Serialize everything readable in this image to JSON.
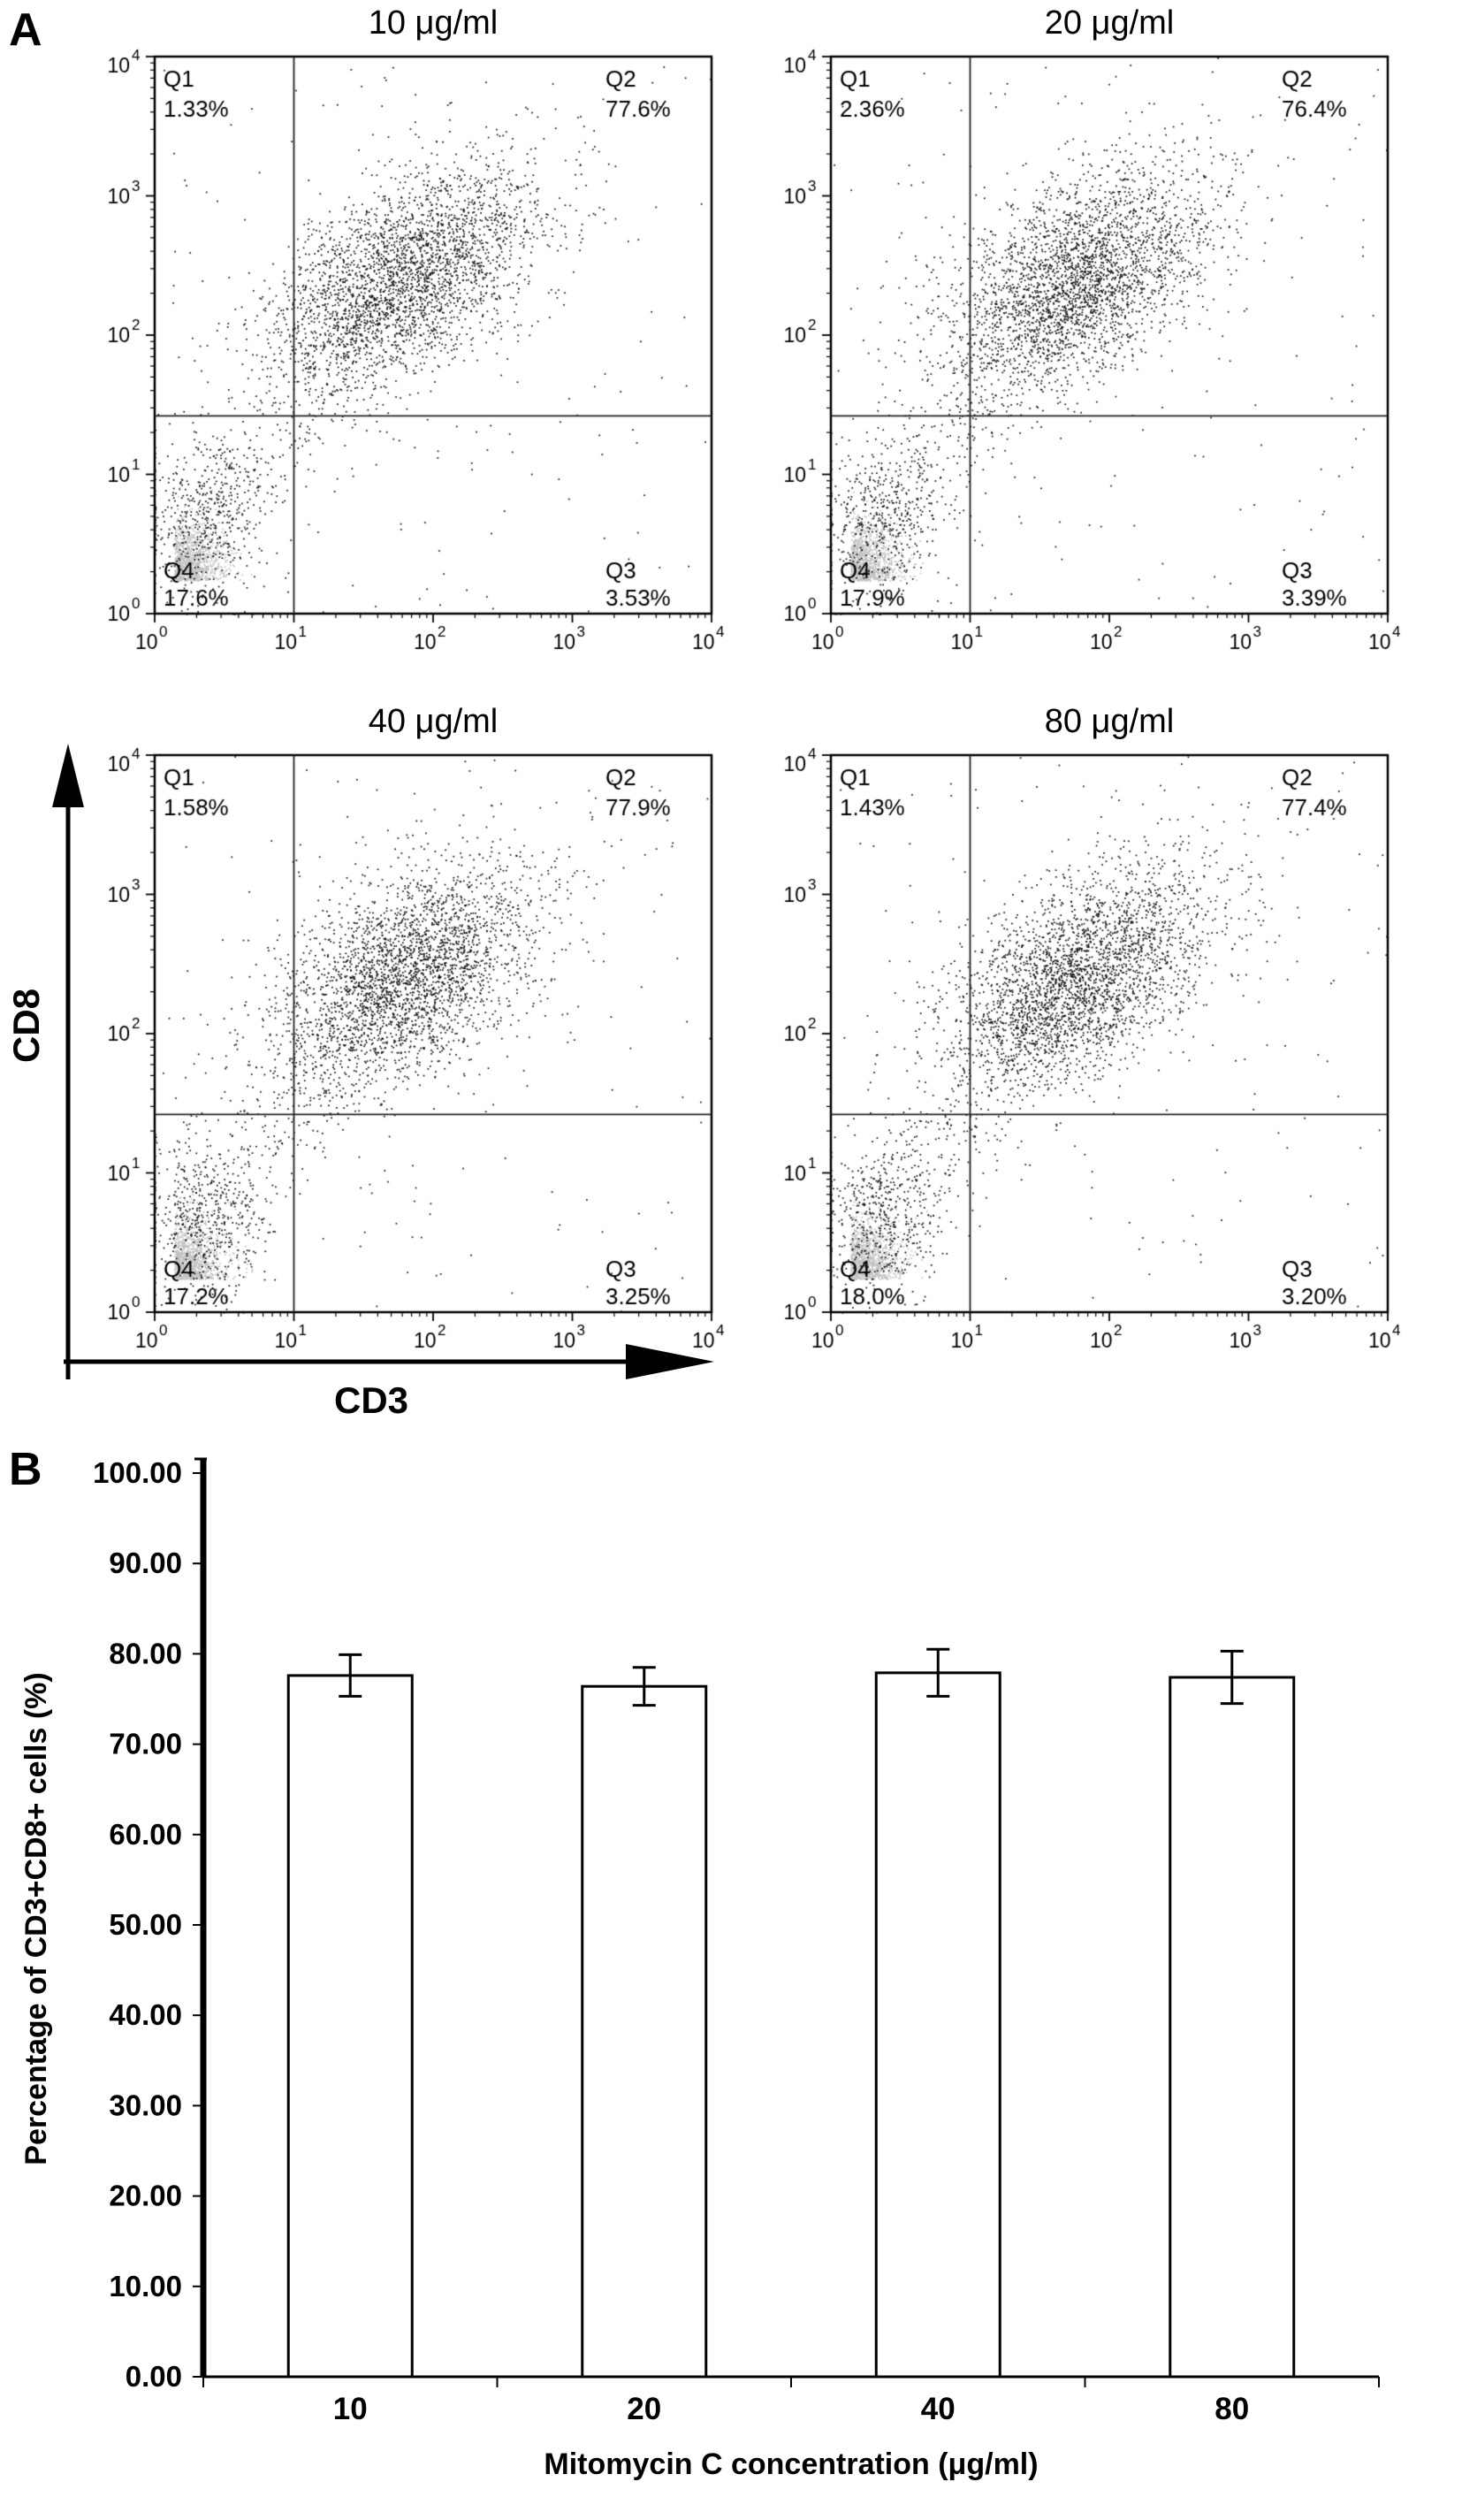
{
  "panel_a": {
    "label": "A",
    "x_axis_label": "CD3",
    "y_axis_label": "CD8"
  },
  "panel_b": {
    "label": "B"
  },
  "chart_data": [
    {
      "type": "scatter",
      "subtype": "flow-cytometry-quadrant-plots",
      "x_label": "CD3",
      "y_label": "CD8",
      "scale": "log10",
      "exponent_range": [
        0,
        4
      ],
      "tick_base": "10",
      "tick_exponents": [
        "0",
        "1",
        "2",
        "3",
        "4"
      ],
      "quadrant_gate_x_exponent": 1.0,
      "quadrant_gate_y_exponent": 1.42,
      "panels": [
        {
          "title": "10 μg/ml",
          "quadrants": [
            {
              "label": "Q1",
              "value": "1.33%"
            },
            {
              "label": "Q2",
              "value": "77.6%"
            },
            {
              "label": "Q3",
              "value": "3.53%"
            },
            {
              "label": "Q4",
              "value": "17.6%"
            }
          ]
        },
        {
          "title": "20 μg/ml",
          "quadrants": [
            {
              "label": "Q1",
              "value": "2.36%"
            },
            {
              "label": "Q2",
              "value": "76.4%"
            },
            {
              "label": "Q3",
              "value": "3.39%"
            },
            {
              "label": "Q4",
              "value": "17.9%"
            }
          ]
        },
        {
          "title": "40 μg/ml",
          "quadrants": [
            {
              "label": "Q1",
              "value": "1.58%"
            },
            {
              "label": "Q2",
              "value": "77.9%"
            },
            {
              "label": "Q3",
              "value": "3.25%"
            },
            {
              "label": "Q4",
              "value": "17.2%"
            }
          ]
        },
        {
          "title": "80 μg/ml",
          "quadrants": [
            {
              "label": "Q1",
              "value": "1.43%"
            },
            {
              "label": "Q2",
              "value": "77.4%"
            },
            {
              "label": "Q3",
              "value": "3.20%"
            },
            {
              "label": "Q4",
              "value": "18.0%"
            }
          ]
        }
      ],
      "point_clusters": [
        {
          "name": "debris-gray",
          "n": 1050,
          "cx": 0.14,
          "cy": 0.24,
          "sx": 0.17,
          "sy": 0.2,
          "color": "#c2c2c2",
          "half": true
        },
        {
          "name": "q4-negative",
          "n": 520,
          "cx": 0.36,
          "cy": 0.7,
          "sx": 0.22,
          "sy": 0.3,
          "color": "#111111"
        },
        {
          "name": "bridge",
          "n": 260,
          "type": "bridge",
          "color": "#111111"
        },
        {
          "name": "q2-double-positive",
          "n": 2900,
          "cx": 1.8,
          "cy": 2.42,
          "sx": 0.48,
          "sy": 0.4,
          "corr": 0.5,
          "color": "#111111"
        },
        {
          "name": "sparse-background",
          "n": 170,
          "type": "uniform",
          "color": "#111111"
        }
      ]
    },
    {
      "type": "bar",
      "name": "cd3-cd8-percentage-vs-mitomycin",
      "categories": [
        "10",
        "20",
        "40",
        "80"
      ],
      "values": [
        77.6,
        76.4,
        77.9,
        77.4
      ],
      "errors": [
        2.3,
        2.1,
        2.6,
        2.9
      ],
      "xlabel": "Mitomycin C concentration (μg/ml)",
      "ylabel": "Percentage of CD3+CD8+ cells (%)",
      "ylim": [
        0,
        100
      ],
      "ytick_labels": [
        "0.00",
        "10.00",
        "20.00",
        "30.00",
        "40.00",
        "50.00",
        "60.00",
        "70.00",
        "80.00",
        "90.00",
        "100.00"
      ],
      "bar_fill": "#ffffff",
      "bar_stroke": "#000000",
      "legend": "none",
      "grid": "off"
    }
  ]
}
